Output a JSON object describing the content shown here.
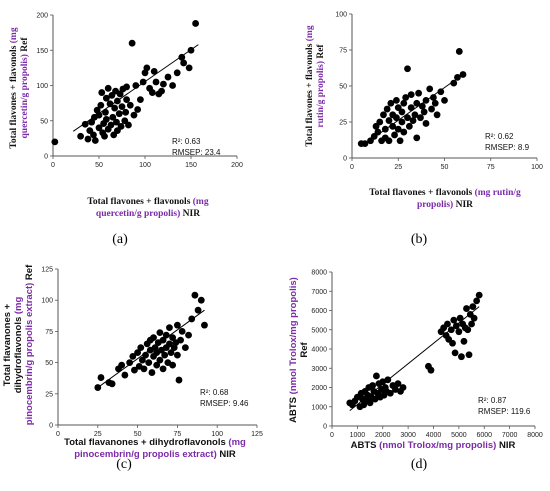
{
  "colors": {
    "accent": "#7b2aa8",
    "marker": "#000000",
    "axis": "#555555"
  },
  "chart_data": [
    {
      "id": "a",
      "type": "scatter",
      "panel_label": "(a)",
      "xlabel_parts": [
        {
          "text": "Total flavones + flavonols ",
          "accent": false
        },
        {
          "text": "(mg",
          "accent": true
        },
        {
          "text": "quercetin/g propolis)",
          "accent": true
        },
        {
          "text": " NIR",
          "accent": false
        }
      ],
      "ylabel_parts": [
        {
          "text": "Total flavones + flavonols ",
          "accent": false
        },
        {
          "text": "(mg",
          "accent": true
        },
        {
          "text": "quercetin/g propolis)",
          "accent": true
        },
        {
          "text": " Ref",
          "accent": false
        }
      ],
      "xlim": [
        0,
        200
      ],
      "ylim": [
        0,
        200
      ],
      "xticks": [
        0,
        50,
        100,
        150,
        200
      ],
      "yticks": [
        0,
        50,
        100,
        150,
        200
      ],
      "r2_text": "R²: 0.63",
      "rmsep_text": "RMSEP: 23.4",
      "trendline": {
        "x": [
          22,
          158
        ],
        "y": [
          35,
          158
        ]
      },
      "points": [
        [
          2,
          20
        ],
        [
          30,
          28
        ],
        [
          35,
          45
        ],
        [
          38,
          24
        ],
        [
          40,
          36
        ],
        [
          42,
          48
        ],
        [
          44,
          30
        ],
        [
          45,
          55
        ],
        [
          46,
          22
        ],
        [
          48,
          65
        ],
        [
          50,
          40
        ],
        [
          50,
          58
        ],
        [
          52,
          72
        ],
        [
          53,
          90
        ],
        [
          54,
          33
        ],
        [
          55,
          46
        ],
        [
          56,
          28
        ],
        [
          57,
          62
        ],
        [
          58,
          82
        ],
        [
          58,
          52
        ],
        [
          60,
          38
        ],
        [
          60,
          96
        ],
        [
          62,
          74
        ],
        [
          63,
          44
        ],
        [
          64,
          86
        ],
        [
          65,
          55
        ],
        [
          66,
          30
        ],
        [
          67,
          68
        ],
        [
          68,
          92
        ],
        [
          69,
          48
        ],
        [
          70,
          78
        ],
        [
          70,
          36
        ],
        [
          72,
          60
        ],
        [
          73,
          88
        ],
        [
          74,
          42
        ],
        [
          75,
          70
        ],
        [
          76,
          95
        ],
        [
          78,
          50
        ],
        [
          79,
          62
        ],
        [
          80,
          80
        ],
        [
          80,
          98
        ],
        [
          82,
          44
        ],
        [
          84,
          72
        ],
        [
          86,
          160
        ],
        [
          88,
          58
        ],
        [
          90,
          100
        ],
        [
          92,
          66
        ],
        [
          95,
          80
        ],
        [
          98,
          105
        ],
        [
          100,
          118
        ],
        [
          102,
          125
        ],
        [
          105,
          96
        ],
        [
          108,
          90
        ],
        [
          110,
          120
        ],
        [
          112,
          105
        ],
        [
          115,
          88
        ],
        [
          118,
          92
        ],
        [
          120,
          102
        ],
        [
          125,
          112
        ],
        [
          130,
          100
        ],
        [
          135,
          118
        ],
        [
          140,
          140
        ],
        [
          142,
          132
        ],
        [
          148,
          125
        ],
        [
          150,
          150
        ],
        [
          155,
          188
        ]
      ]
    },
    {
      "id": "b",
      "type": "scatter",
      "panel_label": "(b)",
      "xlabel_parts": [
        {
          "text": "Total flavones + flavonols ",
          "accent": false
        },
        {
          "text": "(mg rutin/g",
          "accent": true
        },
        {
          "text": "propolis)",
          "accent": true
        },
        {
          "text": " NIR",
          "accent": false
        }
      ],
      "ylabel_parts": [
        {
          "text": "Total flavones + flavonols ",
          "accent": false
        },
        {
          "text": "(mg",
          "accent": true
        },
        {
          "text": "rutin/g propolis)",
          "accent": true
        },
        {
          "text": " Ref",
          "accent": false
        }
      ],
      "xlim": [
        0,
        100
      ],
      "ylim": [
        0,
        100
      ],
      "xticks": [
        0,
        25,
        50,
        75,
        100
      ],
      "yticks": [
        0,
        25,
        50,
        75,
        100
      ],
      "r2_text": "R²: 0.62",
      "rmsep_text": "RMSEP: 8.9",
      "trendline": {
        "x": [
          5,
          60
        ],
        "y": [
          8,
          58
        ]
      },
      "points": [
        [
          5,
          10
        ],
        [
          7,
          10
        ],
        [
          10,
          12
        ],
        [
          12,
          15
        ],
        [
          13,
          22
        ],
        [
          14,
          18
        ],
        [
          15,
          25
        ],
        [
          16,
          12
        ],
        [
          17,
          30
        ],
        [
          18,
          20
        ],
        [
          18,
          14
        ],
        [
          19,
          34
        ],
        [
          20,
          26
        ],
        [
          20,
          12
        ],
        [
          21,
          38
        ],
        [
          22,
          22
        ],
        [
          22,
          30
        ],
        [
          23,
          16
        ],
        [
          24,
          28
        ],
        [
          24,
          40
        ],
        [
          25,
          20
        ],
        [
          25,
          35
        ],
        [
          26,
          12
        ],
        [
          27,
          32
        ],
        [
          27,
          25
        ],
        [
          28,
          38
        ],
        [
          28,
          18
        ],
        [
          29,
          42
        ],
        [
          30,
          28
        ],
        [
          30,
          62
        ],
        [
          31,
          22
        ],
        [
          32,
          35
        ],
        [
          32,
          44
        ],
        [
          33,
          26
        ],
        [
          34,
          30
        ],
        [
          35,
          38
        ],
        [
          35,
          14
        ],
        [
          36,
          45
        ],
        [
          37,
          28
        ],
        [
          38,
          36
        ],
        [
          39,
          32
        ],
        [
          40,
          40
        ],
        [
          40,
          24
        ],
        [
          42,
          48
        ],
        [
          43,
          34
        ],
        [
          44,
          42
        ],
        [
          45,
          38
        ],
        [
          46,
          30
        ],
        [
          48,
          46
        ],
        [
          50,
          40
        ],
        [
          55,
          52
        ],
        [
          57,
          56
        ],
        [
          58,
          74
        ],
        [
          60,
          58
        ]
      ]
    },
    {
      "id": "c",
      "type": "scatter",
      "panel_label": "(c)",
      "xlabel_parts": [
        {
          "text": "Total flavanones + dihydroflavonols ",
          "accent": false
        },
        {
          "text": "(mg",
          "accent": true
        },
        {
          "text": "pinocembrin/g propolis extract)",
          "accent": true
        },
        {
          "text": " NIR",
          "accent": false
        }
      ],
      "ylabel_parts": [
        {
          "text": "Total flavanones +",
          "accent": false
        },
        {
          "text": "dihydroflavonols ",
          "accent": false
        },
        {
          "text": "(mg",
          "accent": true
        },
        {
          "text": "pinocembrin/g propolis extract)",
          "accent": true
        },
        {
          "text": " Ref",
          "accent": false
        }
      ],
      "xlim": [
        0,
        125
      ],
      "ylim": [
        0,
        125
      ],
      "xticks": [
        0,
        25,
        50,
        75,
        100,
        125
      ],
      "yticks": [
        0,
        25,
        50,
        75,
        100,
        125
      ],
      "r2_text": "R²: 0.68",
      "rmsep_text": "RMSEP: 9.46",
      "trendline": {
        "x": [
          25,
          92
        ],
        "y": [
          30,
          92
        ]
      },
      "points": [
        [
          25,
          30
        ],
        [
          27,
          38
        ],
        [
          32,
          34
        ],
        [
          34,
          33
        ],
        [
          38,
          45
        ],
        [
          40,
          48
        ],
        [
          42,
          40
        ],
        [
          45,
          50
        ],
        [
          47,
          55
        ],
        [
          48,
          44
        ],
        [
          50,
          58
        ],
        [
          51,
          47
        ],
        [
          52,
          62
        ],
        [
          53,
          52
        ],
        [
          54,
          45
        ],
        [
          55,
          56
        ],
        [
          56,
          65
        ],
        [
          57,
          50
        ],
        [
          58,
          60
        ],
        [
          58,
          68
        ],
        [
          59,
          42
        ],
        [
          60,
          55
        ],
        [
          60,
          70
        ],
        [
          61,
          62
        ],
        [
          62,
          48
        ],
        [
          62,
          58
        ],
        [
          63,
          66
        ],
        [
          64,
          52
        ],
        [
          64,
          74
        ],
        [
          65,
          60
        ],
        [
          66,
          45
        ],
        [
          66,
          68
        ],
        [
          67,
          56
        ],
        [
          68,
          62
        ],
        [
          68,
          72
        ],
        [
          69,
          50
        ],
        [
          70,
          65
        ],
        [
          70,
          78
        ],
        [
          71,
          58
        ],
        [
          72,
          70
        ],
        [
          72,
          48
        ],
        [
          73,
          62
        ],
        [
          74,
          66
        ],
        [
          75,
          56
        ],
        [
          75,
          80
        ],
        [
          76,
          36
        ],
        [
          77,
          68
        ],
        [
          78,
          75
        ],
        [
          80,
          62
        ],
        [
          82,
          72
        ],
        [
          84,
          85
        ],
        [
          86,
          104
        ],
        [
          88,
          92
        ],
        [
          90,
          100
        ],
        [
          92,
          80
        ]
      ]
    },
    {
      "id": "d",
      "type": "scatter",
      "panel_label": "(d)",
      "xlabel_parts": [
        {
          "text": "ABTS ",
          "accent": false
        },
        {
          "text": "(nmol Trolox/mg propolis)",
          "accent": true
        },
        {
          "text": " NIR",
          "accent": false
        }
      ],
      "ylabel_parts": [
        {
          "text": "ABTS ",
          "accent": false
        },
        {
          "text": "(nmol Trolox/mg propolis)",
          "accent": true
        },
        {
          "text": "Ref",
          "accent": false
        }
      ],
      "xlim": [
        0,
        8000
      ],
      "ylim": [
        0,
        8000
      ],
      "xticks": [
        0,
        1000,
        2000,
        3000,
        4000,
        5000,
        6000,
        7000,
        8000
      ],
      "yticks": [
        0,
        1000,
        2000,
        3000,
        4000,
        5000,
        6000,
        7000,
        8000
      ],
      "r2_text": "R²: 0.87",
      "rmsep_text": "RMSEP: 119.6",
      "trendline": {
        "x": [
          700,
          5800
        ],
        "y": [
          800,
          6200
        ]
      },
      "points": [
        [
          700,
          1200
        ],
        [
          800,
          1100
        ],
        [
          900,
          1300
        ],
        [
          1000,
          1500
        ],
        [
          1100,
          1000
        ],
        [
          1150,
          1700
        ],
        [
          1200,
          1400
        ],
        [
          1250,
          1100
        ],
        [
          1300,
          1800
        ],
        [
          1350,
          1300
        ],
        [
          1400,
          1600
        ],
        [
          1450,
          2000
        ],
        [
          1500,
          1200
        ],
        [
          1550,
          1500
        ],
        [
          1600,
          2100
        ],
        [
          1650,
          1800
        ],
        [
          1700,
          1400
        ],
        [
          1750,
          2600
        ],
        [
          1800,
          1700
        ],
        [
          1850,
          2200
        ],
        [
          1900,
          1500
        ],
        [
          1950,
          1900
        ],
        [
          2000,
          2300
        ],
        [
          2050,
          1600
        ],
        [
          2100,
          2000
        ],
        [
          2150,
          1800
        ],
        [
          2200,
          2400
        ],
        [
          2300,
          1700
        ],
        [
          2400,
          2100
        ],
        [
          2500,
          1900
        ],
        [
          2600,
          2200
        ],
        [
          2700,
          1800
        ],
        [
          2800,
          2000
        ],
        [
          3800,
          3100
        ],
        [
          3900,
          2900
        ],
        [
          4300,
          4900
        ],
        [
          4400,
          5100
        ],
        [
          4500,
          4700
        ],
        [
          4550,
          5300
        ],
        [
          4600,
          4500
        ],
        [
          4700,
          5000
        ],
        [
          4750,
          4300
        ],
        [
          4800,
          5500
        ],
        [
          4850,
          3800
        ],
        [
          4900,
          5200
        ],
        [
          5000,
          4900
        ],
        [
          5050,
          5600
        ],
        [
          5100,
          3600
        ],
        [
          5150,
          5300
        ],
        [
          5200,
          4400
        ],
        [
          5250,
          5100
        ],
        [
          5300,
          6100
        ],
        [
          5350,
          5000
        ],
        [
          5400,
          3700
        ],
        [
          5450,
          5800
        ],
        [
          5500,
          5300
        ],
        [
          5550,
          6200
        ],
        [
          5600,
          5600
        ],
        [
          5700,
          6500
        ],
        [
          5800,
          6800
        ]
      ]
    }
  ]
}
